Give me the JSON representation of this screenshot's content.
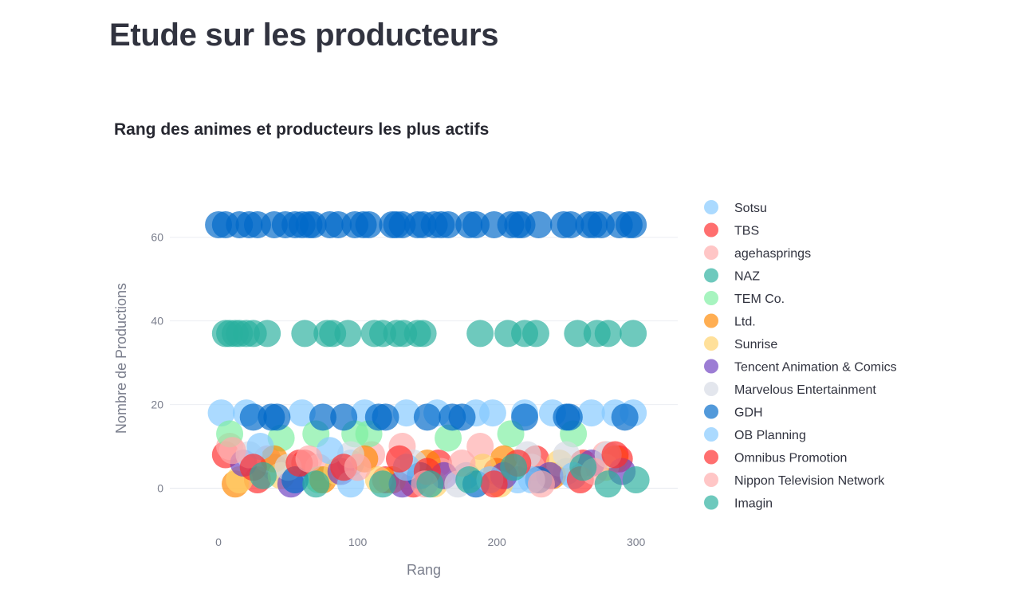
{
  "page": {
    "title": "Etude sur les producteurs"
  },
  "chart_data": {
    "type": "scatter",
    "title": "Rang des animes et producteurs les plus actifs",
    "xlabel": "Rang",
    "ylabel": "Nombre de Productions",
    "xlim": [
      -35,
      330
    ],
    "ylim": [
      -10,
      71
    ],
    "x_ticks": [
      0,
      100,
      200,
      300
    ],
    "y_ticks": [
      0,
      20,
      40,
      60
    ],
    "grid": "horizontal",
    "legend_position": "right",
    "series": [
      {
        "name": "Sotsu",
        "color": "#83c9ff",
        "points": [
          [
            2,
            18
          ],
          [
            20,
            18
          ],
          [
            60,
            18
          ],
          [
            105,
            18
          ],
          [
            135,
            18
          ],
          [
            157,
            18
          ],
          [
            185,
            18
          ],
          [
            197,
            18
          ],
          [
            220,
            18
          ],
          [
            240,
            18
          ],
          [
            268,
            18
          ],
          [
            285,
            18
          ],
          [
            298,
            18
          ],
          [
            40,
            5
          ],
          [
            95,
            6
          ],
          [
            178,
            3
          ],
          [
            250,
            4
          ],
          [
            215,
            2
          ]
        ]
      },
      {
        "name": "TBS",
        "color": "#ff2b2b",
        "points": [
          [
            5,
            8
          ],
          [
            28,
            2
          ],
          [
            62,
            6
          ],
          [
            120,
            2
          ],
          [
            158,
            6
          ],
          [
            200,
            4
          ],
          [
            228,
            7
          ],
          [
            262,
            6
          ],
          [
            288,
            7
          ],
          [
            140,
            1
          ]
        ]
      },
      {
        "name": "agehasprings",
        "color": "#ffabab",
        "points": [
          [
            8,
            10
          ],
          [
            35,
            7
          ],
          [
            72,
            5
          ],
          [
            110,
            8
          ],
          [
            132,
            10
          ],
          [
            188,
            10
          ],
          [
            225,
            5
          ],
          [
            278,
            8
          ],
          [
            160,
            4
          ]
        ]
      },
      {
        "name": "NAZ",
        "color": "#29b09d",
        "points": [
          [
            5,
            37
          ],
          [
            8,
            37
          ],
          [
            12,
            37
          ],
          [
            15,
            37
          ],
          [
            20,
            37
          ],
          [
            25,
            37
          ],
          [
            35,
            37
          ],
          [
            62,
            37
          ],
          [
            78,
            37
          ],
          [
            82,
            37
          ],
          [
            93,
            37
          ],
          [
            112,
            37
          ],
          [
            118,
            37
          ],
          [
            128,
            37
          ],
          [
            133,
            37
          ],
          [
            143,
            37
          ],
          [
            147,
            37
          ],
          [
            188,
            37
          ],
          [
            208,
            37
          ],
          [
            220,
            37
          ],
          [
            228,
            37
          ],
          [
            258,
            37
          ],
          [
            272,
            37
          ],
          [
            280,
            37
          ],
          [
            298,
            37
          ]
        ]
      },
      {
        "name": "TEM Co.",
        "color": "#7defa1",
        "points": [
          [
            8,
            13
          ],
          [
            45,
            12
          ],
          [
            70,
            13
          ],
          [
            98,
            13
          ],
          [
            108,
            13
          ],
          [
            165,
            12
          ],
          [
            210,
            13
          ],
          [
            255,
            13
          ],
          [
            72,
            2
          ]
        ]
      },
      {
        "name": "Ltd.",
        "color": "#ff8700",
        "points": [
          [
            12,
            1
          ],
          [
            40,
            7
          ],
          [
            75,
            2
          ],
          [
            105,
            7
          ],
          [
            150,
            6
          ],
          [
            205,
            7
          ],
          [
            240,
            3
          ],
          [
            285,
            7
          ],
          [
            125,
            2
          ]
        ]
      },
      {
        "name": "Sunrise",
        "color": "#ffd16a",
        "points": [
          [
            15,
            2
          ],
          [
            45,
            3
          ],
          [
            85,
            4
          ],
          [
            115,
            2
          ],
          [
            155,
            1
          ],
          [
            190,
            5
          ],
          [
            245,
            6
          ],
          [
            278,
            5
          ],
          [
            202,
            1
          ]
        ]
      },
      {
        "name": "Tencent Animation & Comics",
        "color": "#6d3fc0",
        "points": [
          [
            18,
            6
          ],
          [
            52,
            1
          ],
          [
            88,
            4
          ],
          [
            132,
            1
          ],
          [
            162,
            3
          ],
          [
            205,
            3
          ],
          [
            238,
            3
          ],
          [
            268,
            6
          ],
          [
            290,
            4
          ]
        ]
      },
      {
        "name": "Marvelous Entertainment",
        "color": "#d5dae5",
        "points": [
          [
            22,
            8
          ],
          [
            50,
            5
          ],
          [
            95,
            8
          ],
          [
            140,
            6
          ],
          [
            172,
            1
          ],
          [
            222,
            8
          ],
          [
            250,
            8
          ],
          [
            280,
            8
          ]
        ]
      },
      {
        "name": "GDH",
        "color": "#0068c9",
        "points": [
          [
            0,
            63
          ],
          [
            5,
            63
          ],
          [
            15,
            63
          ],
          [
            22,
            63
          ],
          [
            28,
            63
          ],
          [
            40,
            63
          ],
          [
            48,
            63
          ],
          [
            55,
            63
          ],
          [
            60,
            63
          ],
          [
            65,
            63
          ],
          [
            68,
            63
          ],
          [
            80,
            63
          ],
          [
            86,
            63
          ],
          [
            98,
            63
          ],
          [
            104,
            63
          ],
          [
            108,
            63
          ],
          [
            125,
            63
          ],
          [
            128,
            63
          ],
          [
            132,
            63
          ],
          [
            143,
            63
          ],
          [
            147,
            63
          ],
          [
            155,
            63
          ],
          [
            160,
            63
          ],
          [
            165,
            63
          ],
          [
            180,
            63
          ],
          [
            185,
            63
          ],
          [
            198,
            63
          ],
          [
            210,
            63
          ],
          [
            215,
            63
          ],
          [
            218,
            63
          ],
          [
            230,
            63
          ],
          [
            248,
            63
          ],
          [
            253,
            63
          ],
          [
            266,
            63
          ],
          [
            270,
            63
          ],
          [
            275,
            63
          ],
          [
            288,
            63
          ],
          [
            295,
            63
          ],
          [
            298,
            63
          ],
          [
            25,
            17
          ],
          [
            38,
            17
          ],
          [
            42,
            17
          ],
          [
            75,
            17
          ],
          [
            90,
            17
          ],
          [
            115,
            17
          ],
          [
            120,
            17
          ],
          [
            150,
            17
          ],
          [
            168,
            17
          ],
          [
            175,
            17
          ],
          [
            220,
            17
          ],
          [
            250,
            17
          ],
          [
            252,
            17
          ],
          [
            292,
            17
          ],
          [
            55,
            2
          ],
          [
            145,
            3
          ],
          [
            185,
            1
          ],
          [
            230,
            2
          ]
        ]
      },
      {
        "name": "OB Planning",
        "color": "#83c9ff",
        "points": [
          [
            30,
            10
          ],
          [
            80,
            9
          ],
          [
            95,
            1
          ],
          [
            135,
            5
          ],
          [
            195,
            2
          ],
          [
            255,
            3
          ],
          [
            225,
            2
          ]
        ]
      },
      {
        "name": "Omnibus Promotion",
        "color": "#ff2b2b",
        "points": [
          [
            25,
            5
          ],
          [
            58,
            6
          ],
          [
            90,
            5
          ],
          [
            130,
            7
          ],
          [
            150,
            4
          ],
          [
            198,
            1
          ],
          [
            215,
            6
          ],
          [
            260,
            2
          ],
          [
            285,
            8
          ]
        ]
      },
      {
        "name": "Nippon Television Network",
        "color": "#ffabab",
        "points": [
          [
            10,
            9
          ],
          [
            65,
            7
          ],
          [
            100,
            5
          ],
          [
            148,
            1
          ],
          [
            175,
            6
          ],
          [
            232,
            1
          ],
          [
            270,
            4
          ]
        ]
      },
      {
        "name": "Imagin",
        "color": "#29b09d",
        "points": [
          [
            32,
            3
          ],
          [
            70,
            1
          ],
          [
            118,
            1
          ],
          [
            152,
            1
          ],
          [
            180,
            2
          ],
          [
            212,
            5
          ],
          [
            262,
            5
          ],
          [
            280,
            1
          ],
          [
            300,
            2
          ]
        ]
      }
    ]
  }
}
